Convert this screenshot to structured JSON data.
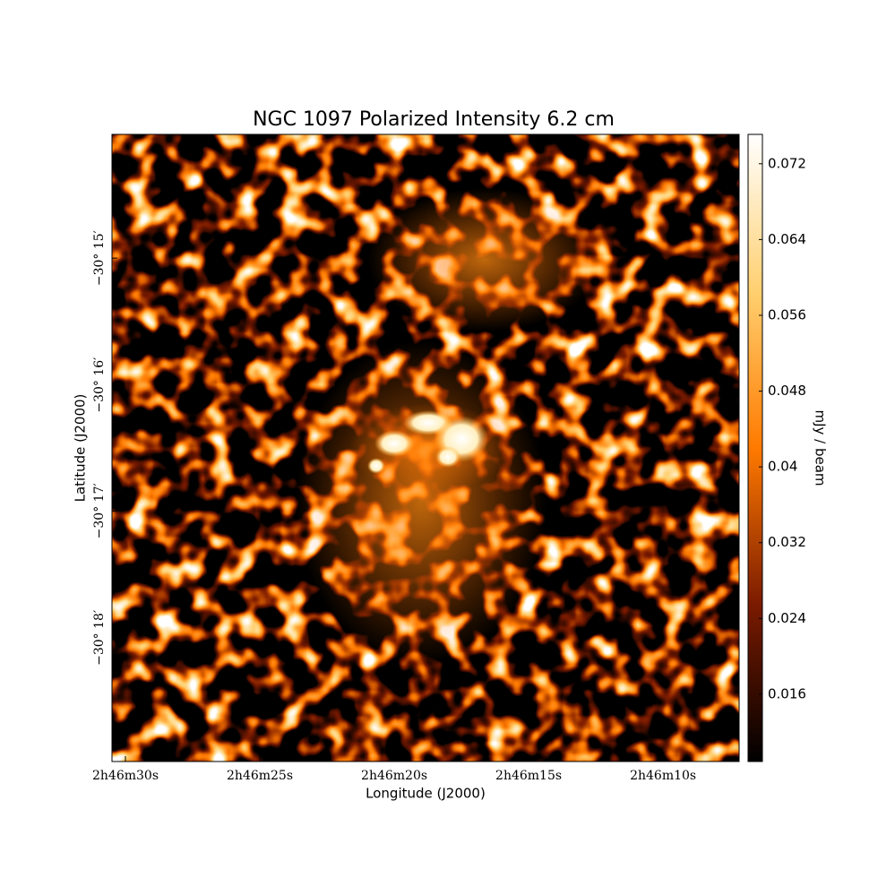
{
  "chart_data": {
    "type": "image",
    "title": "NGC 1097 Polarized Intensity 6.2 cm",
    "xlabel": "Longitude (J2000)",
    "ylabel": "Latitude (J2000)",
    "colorbar_label": "mJy / beam",
    "xlim": [
      30.5,
      7.17
    ],
    "xticks": [
      {
        "value": 30,
        "label": "2h46m30s"
      },
      {
        "value": 25,
        "label": "2h46m25s"
      },
      {
        "value": 20,
        "label": "2h46m20s"
      },
      {
        "value": 15,
        "label": "2h46m15s"
      },
      {
        "value": 10,
        "label": "2h46m10s"
      }
    ],
    "ylim": [
      -30.3163,
      -30.2337
    ],
    "yticks": [
      {
        "value": -30.25,
        "label": "−30° 15′"
      },
      {
        "value": -30.2667,
        "label": "−30° 16′"
      },
      {
        "value": -30.2833,
        "label": "−30° 17′"
      },
      {
        "value": -30.3,
        "label": "−30° 18′"
      }
    ],
    "clim": [
      0.0089,
      0.0751
    ],
    "cticks": [
      0.016,
      0.024,
      0.032,
      0.04,
      0.048,
      0.056,
      0.064,
      0.072
    ],
    "colormap": [
      "#000000",
      "#7a1a00",
      "#ff7a00",
      "#ffd070",
      "#ffffff"
    ]
  }
}
